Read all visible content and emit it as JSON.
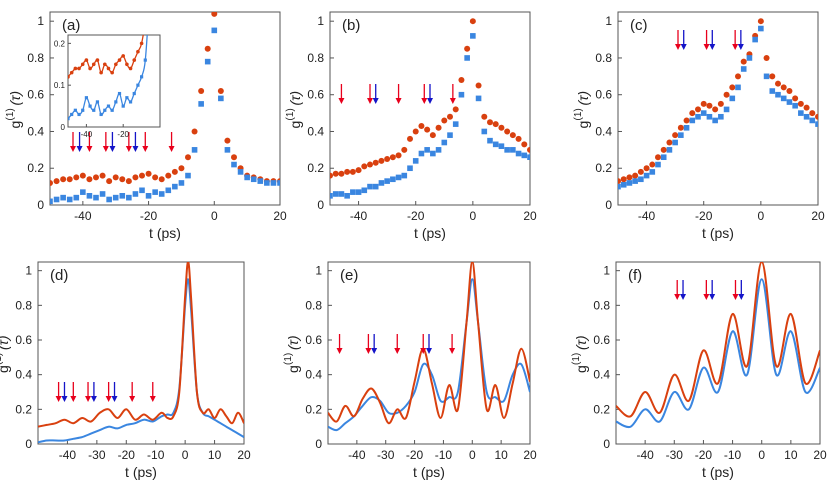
{
  "colors": {
    "red": "#d9400f",
    "blue": "#3a86e0",
    "arrow_red": "#e8001c",
    "arrow_blue": "#1414c8",
    "axis": "#555555"
  },
  "chart_data": [
    {
      "id": "a",
      "panel_label": "(a)",
      "type": "scatter",
      "xlabel": "t (ps)",
      "ylabel_main": "g",
      "ylabel_sup": "(1)",
      "ylabel_paren": "(τ)",
      "xlim": [
        -50,
        20
      ],
      "ylim": [
        0,
        1.05
      ],
      "xticks": [
        -40,
        -20,
        0,
        20
      ],
      "xtick_labels": [
        "-40",
        "-20",
        "0",
        "20"
      ],
      "yticks": [
        0,
        0.2,
        0.4,
        0.6,
        0.8,
        1
      ],
      "ytick_labels": [
        "0",
        "0.2",
        "0.4",
        "0.6",
        "0.8",
        "1"
      ],
      "red_arrows": [
        -43,
        -38,
        -33,
        -26,
        -21,
        -13
      ],
      "blue_arrows": [
        -41,
        -31,
        -24
      ],
      "inset": {
        "xlim": [
          -50,
          0
        ],
        "ylim": [
          0,
          0.22
        ],
        "xticks": [
          -40,
          -20
        ],
        "xtick_labels": [
          "-40",
          "-20"
        ],
        "yticks": [
          0,
          0.1,
          0.2
        ],
        "ytick_labels": [
          "0",
          "0.1",
          "0.2"
        ]
      },
      "series": [
        {
          "name": "red",
          "marker": "circle",
          "x": [
            -50,
            -48,
            -46,
            -44,
            -42,
            -40,
            -38,
            -36,
            -34,
            -32,
            -30,
            -28,
            -26,
            -24,
            -22,
            -20,
            -18,
            -16,
            -14,
            -12,
            -10,
            -8,
            -6,
            -4,
            -2,
            0,
            2,
            4,
            6,
            8,
            10,
            12,
            14,
            16,
            18,
            20
          ],
          "y": [
            0.12,
            0.13,
            0.14,
            0.14,
            0.15,
            0.16,
            0.14,
            0.15,
            0.16,
            0.13,
            0.15,
            0.14,
            0.13,
            0.15,
            0.16,
            0.17,
            0.15,
            0.14,
            0.16,
            0.18,
            0.2,
            0.26,
            0.4,
            0.62,
            0.85,
            1.04,
            0.62,
            0.35,
            0.26,
            0.2,
            0.16,
            0.15,
            0.14,
            0.13,
            0.13,
            0.13
          ]
        },
        {
          "name": "blue",
          "marker": "square",
          "x": [
            -50,
            -48,
            -46,
            -44,
            -42,
            -40,
            -38,
            -36,
            -34,
            -32,
            -30,
            -28,
            -26,
            -24,
            -22,
            -20,
            -18,
            -16,
            -14,
            -12,
            -10,
            -8,
            -6,
            -4,
            -2,
            0,
            2,
            4,
            6,
            8,
            10,
            12,
            14,
            16,
            18,
            20
          ],
          "y": [
            0.02,
            0.03,
            0.04,
            0.03,
            0.04,
            0.07,
            0.05,
            0.04,
            0.06,
            0.03,
            0.04,
            0.05,
            0.04,
            0.06,
            0.08,
            0.05,
            0.07,
            0.06,
            0.08,
            0.1,
            0.12,
            0.16,
            0.3,
            0.55,
            0.78,
            0.95,
            0.58,
            0.3,
            0.22,
            0.18,
            0.15,
            0.14,
            0.13,
            0.12,
            0.12,
            0.12
          ]
        }
      ]
    },
    {
      "id": "b",
      "panel_label": "(b)",
      "type": "scatter",
      "xlabel": "t (ps)",
      "ylabel_main": "g",
      "ylabel_sup": "(1)",
      "ylabel_paren": "(τ)",
      "xlim": [
        -50,
        20
      ],
      "ylim": [
        0,
        1.05
      ],
      "xticks": [
        -40,
        -20,
        0,
        20
      ],
      "xtick_labels": [
        "-40",
        "-20",
        "0",
        "20"
      ],
      "yticks": [
        0,
        0.2,
        0.4,
        0.6,
        0.8,
        1
      ],
      "ytick_labels": [
        "0",
        "0.2",
        "0.4",
        "0.6",
        "0.8",
        "1"
      ],
      "red_arrows": [
        -46,
        -36,
        -26,
        -17,
        -7
      ],
      "blue_arrows": [
        -34,
        -15
      ],
      "series": [
        {
          "name": "red",
          "marker": "circle",
          "x": [
            -50,
            -48,
            -46,
            -44,
            -42,
            -40,
            -38,
            -36,
            -34,
            -32,
            -30,
            -28,
            -26,
            -24,
            -22,
            -20,
            -18,
            -16,
            -14,
            -12,
            -10,
            -8,
            -6,
            -4,
            -2,
            0,
            2,
            4,
            6,
            8,
            10,
            12,
            14,
            16,
            18,
            20
          ],
          "y": [
            0.16,
            0.17,
            0.17,
            0.18,
            0.18,
            0.19,
            0.21,
            0.22,
            0.23,
            0.24,
            0.25,
            0.26,
            0.27,
            0.3,
            0.36,
            0.4,
            0.43,
            0.41,
            0.38,
            0.42,
            0.46,
            0.48,
            0.52,
            0.68,
            0.85,
            1.0,
            0.65,
            0.48,
            0.45,
            0.44,
            0.42,
            0.4,
            0.38,
            0.36,
            0.33,
            0.3
          ]
        },
        {
          "name": "blue",
          "marker": "square",
          "x": [
            -50,
            -48,
            -46,
            -44,
            -42,
            -40,
            -38,
            -36,
            -34,
            -32,
            -30,
            -28,
            -26,
            -24,
            -22,
            -20,
            -18,
            -16,
            -14,
            -12,
            -10,
            -8,
            -6,
            -4,
            -2,
            0,
            2,
            4,
            6,
            8,
            10,
            12,
            14,
            16,
            18,
            20
          ],
          "y": [
            0.05,
            0.06,
            0.06,
            0.05,
            0.07,
            0.07,
            0.08,
            0.1,
            0.1,
            0.12,
            0.13,
            0.14,
            0.15,
            0.16,
            0.2,
            0.24,
            0.28,
            0.3,
            0.28,
            0.3,
            0.34,
            0.38,
            0.44,
            0.6,
            0.8,
            0.92,
            0.58,
            0.4,
            0.35,
            0.33,
            0.32,
            0.3,
            0.3,
            0.28,
            0.27,
            0.26
          ]
        }
      ]
    },
    {
      "id": "c",
      "panel_label": "(c)",
      "type": "scatter",
      "xlabel": "t (ps)",
      "ylabel_main": "g",
      "ylabel_sup": "(1)",
      "ylabel_paren": "(τ)",
      "xlim": [
        -50,
        20
      ],
      "ylim": [
        0,
        1.05
      ],
      "xticks": [
        -40,
        -20,
        0,
        20
      ],
      "xtick_labels": [
        "-40",
        "-20",
        "0",
        "20"
      ],
      "yticks": [
        0,
        0.2,
        0.4,
        0.6,
        0.8,
        1
      ],
      "ytick_labels": [
        "0",
        "0.2",
        "0.4",
        "0.6",
        "0.8",
        "1"
      ],
      "red_arrows": [
        -29,
        -19,
        -9
      ],
      "blue_arrows": [
        -27,
        -17,
        -7
      ],
      "series": [
        {
          "name": "red",
          "marker": "circle",
          "x": [
            -50,
            -48,
            -46,
            -44,
            -42,
            -40,
            -38,
            -36,
            -34,
            -32,
            -30,
            -28,
            -26,
            -24,
            -22,
            -20,
            -18,
            -16,
            -14,
            -12,
            -10,
            -8,
            -6,
            -4,
            -2,
            0,
            2,
            4,
            6,
            8,
            10,
            12,
            14,
            16,
            18,
            20
          ],
          "y": [
            0.13,
            0.14,
            0.15,
            0.16,
            0.18,
            0.2,
            0.22,
            0.26,
            0.3,
            0.34,
            0.38,
            0.42,
            0.46,
            0.5,
            0.52,
            0.55,
            0.54,
            0.52,
            0.55,
            0.6,
            0.64,
            0.7,
            0.78,
            0.82,
            0.92,
            1.0,
            0.8,
            0.7,
            0.66,
            0.64,
            0.62,
            0.58,
            0.55,
            0.53,
            0.5,
            0.48
          ]
        },
        {
          "name": "blue",
          "marker": "square",
          "x": [
            -50,
            -48,
            -46,
            -44,
            -42,
            -40,
            -38,
            -36,
            -34,
            -32,
            -30,
            -28,
            -26,
            -24,
            -22,
            -20,
            -18,
            -16,
            -14,
            -12,
            -10,
            -8,
            -6,
            -4,
            -2,
            0,
            2,
            4,
            6,
            8,
            10,
            12,
            14,
            16,
            18,
            20
          ],
          "y": [
            0.1,
            0.11,
            0.12,
            0.13,
            0.14,
            0.16,
            0.18,
            0.22,
            0.26,
            0.3,
            0.34,
            0.38,
            0.42,
            0.46,
            0.48,
            0.5,
            0.48,
            0.46,
            0.48,
            0.52,
            0.58,
            0.64,
            0.74,
            0.8,
            0.9,
            0.96,
            0.7,
            0.62,
            0.6,
            0.58,
            0.56,
            0.54,
            0.5,
            0.48,
            0.46,
            0.44
          ]
        }
      ]
    },
    {
      "id": "d",
      "panel_label": "(d)",
      "type": "line",
      "xlabel": "t (ps)",
      "ylabel_main": "g",
      "ylabel_sup": "(1)",
      "ylabel_paren": "(τ)",
      "xlim": [
        -50,
        20
      ],
      "ylim": [
        0,
        1.05
      ],
      "xticks": [
        -40,
        -30,
        -20,
        -10,
        0,
        10,
        20
      ],
      "xtick_labels": [
        "-40",
        "-30",
        "-20",
        "-10",
        "0",
        "10",
        "20"
      ],
      "yticks": [
        0,
        0.2,
        0.4,
        0.6,
        0.8,
        1
      ],
      "ytick_labels": [
        "0",
        "0.2",
        "0.4",
        "0.6",
        "0.8",
        "1"
      ],
      "red_arrows": [
        -43,
        -38,
        -33,
        -26,
        -18,
        -11
      ],
      "blue_arrows": [
        -41,
        -31,
        -24
      ],
      "series": [
        {
          "name": "red",
          "x": [
            -50,
            -47,
            -44,
            -41,
            -38,
            -35,
            -32,
            -29,
            -26,
            -23,
            -20,
            -17,
            -14,
            -11,
            -8,
            -6,
            -4,
            -2,
            0,
            1,
            2,
            4,
            6,
            8,
            10,
            12,
            14,
            16,
            18,
            20
          ],
          "y": [
            0.1,
            0.11,
            0.12,
            0.14,
            0.12,
            0.15,
            0.13,
            0.18,
            0.2,
            0.15,
            0.2,
            0.14,
            0.17,
            0.14,
            0.18,
            0.15,
            0.16,
            0.3,
            0.85,
            1.05,
            0.85,
            0.3,
            0.18,
            0.2,
            0.15,
            0.2,
            0.16,
            0.12,
            0.18,
            0.12
          ]
        },
        {
          "name": "blue",
          "x": [
            -50,
            -47,
            -44,
            -41,
            -38,
            -35,
            -32,
            -29,
            -26,
            -23,
            -20,
            -17,
            -14,
            -11,
            -8,
            -6,
            -4,
            -2,
            0,
            1,
            2,
            4,
            6,
            8,
            10,
            12,
            14,
            16,
            18,
            20
          ],
          "y": [
            0.01,
            0.02,
            0.02,
            0.02,
            0.03,
            0.04,
            0.06,
            0.08,
            0.1,
            0.09,
            0.11,
            0.12,
            0.14,
            0.13,
            0.16,
            0.17,
            0.18,
            0.32,
            0.8,
            0.95,
            0.78,
            0.3,
            0.18,
            0.16,
            0.14,
            0.12,
            0.1,
            0.08,
            0.06,
            0.04
          ]
        }
      ]
    },
    {
      "id": "e",
      "panel_label": "(e)",
      "type": "line",
      "xlabel": "t (ps)",
      "ylabel_main": "g",
      "ylabel_sup": "(1)",
      "ylabel_paren": "(τ)",
      "xlim": [
        -50,
        20
      ],
      "ylim": [
        0,
        1.05
      ],
      "xticks": [
        -40,
        -30,
        -20,
        -10,
        0,
        10,
        20
      ],
      "xtick_labels": [
        "-40",
        "-30",
        "-20",
        "-10",
        "0",
        "10",
        "20"
      ],
      "yticks": [
        0,
        0.2,
        0.4,
        0.6,
        0.8,
        1
      ],
      "ytick_labels": [
        "0",
        "0.2",
        "0.4",
        "0.6",
        "0.8",
        "1"
      ],
      "red_arrows": [
        -46,
        -36,
        -26,
        -17,
        -7
      ],
      "blue_arrows": [
        -34,
        -15
      ],
      "series": [
        {
          "name": "red",
          "x": [
            -50,
            -47,
            -44,
            -41,
            -38,
            -35,
            -32,
            -29,
            -26,
            -23,
            -20,
            -17,
            -14,
            -11,
            -8,
            -5,
            -2,
            0,
            2,
            5,
            8,
            11,
            14,
            17,
            20
          ],
          "y": [
            0.18,
            0.13,
            0.22,
            0.16,
            0.26,
            0.32,
            0.24,
            0.12,
            0.2,
            0.15,
            0.36,
            0.55,
            0.35,
            0.15,
            0.34,
            0.2,
            0.7,
            1.05,
            0.7,
            0.2,
            0.34,
            0.15,
            0.35,
            0.55,
            0.36
          ]
        },
        {
          "name": "blue",
          "x": [
            -50,
            -47,
            -44,
            -41,
            -38,
            -35,
            -32,
            -29,
            -26,
            -23,
            -20,
            -17,
            -14,
            -11,
            -8,
            -5,
            -2,
            0,
            2,
            5,
            8,
            11,
            14,
            17,
            20
          ],
          "y": [
            0.1,
            0.08,
            0.12,
            0.16,
            0.22,
            0.27,
            0.25,
            0.18,
            0.18,
            0.22,
            0.3,
            0.46,
            0.4,
            0.25,
            0.27,
            0.3,
            0.7,
            0.95,
            0.7,
            0.3,
            0.27,
            0.25,
            0.4,
            0.46,
            0.3
          ]
        }
      ]
    },
    {
      "id": "f",
      "panel_label": "(f)",
      "type": "line",
      "xlabel": "t (ps)",
      "ylabel_main": "g",
      "ylabel_sup": "(1)",
      "ylabel_paren": "(τ)",
      "xlim": [
        -50,
        20
      ],
      "ylim": [
        0,
        1.05
      ],
      "xticks": [
        -40,
        -30,
        -20,
        -10,
        0,
        10,
        20
      ],
      "xtick_labels": [
        "-40",
        "-30",
        "-20",
        "-10",
        "0",
        "10",
        "20"
      ],
      "yticks": [
        0,
        0.2,
        0.4,
        0.6,
        0.8,
        1
      ],
      "ytick_labels": [
        "0",
        "0.2",
        "0.4",
        "0.6",
        "0.8",
        "1"
      ],
      "red_arrows": [
        -29,
        -19,
        -9
      ],
      "blue_arrows": [
        -27,
        -17,
        -7
      ],
      "series": [
        {
          "name": "red",
          "x": [
            -50,
            -45,
            -40,
            -35,
            -30,
            -25,
            -20,
            -15,
            -10,
            -5,
            0,
            5,
            10,
            15,
            20
          ],
          "y": [
            0.22,
            0.16,
            0.3,
            0.18,
            0.4,
            0.25,
            0.54,
            0.35,
            0.75,
            0.45,
            1.05,
            0.45,
            0.75,
            0.35,
            0.54
          ]
        },
        {
          "name": "blue",
          "x": [
            -50,
            -45,
            -40,
            -35,
            -30,
            -25,
            -20,
            -15,
            -10,
            -5,
            0,
            5,
            10,
            15,
            20
          ],
          "y": [
            0.13,
            0.1,
            0.2,
            0.13,
            0.3,
            0.2,
            0.44,
            0.3,
            0.65,
            0.4,
            0.95,
            0.4,
            0.65,
            0.3,
            0.44
          ]
        }
      ]
    }
  ]
}
